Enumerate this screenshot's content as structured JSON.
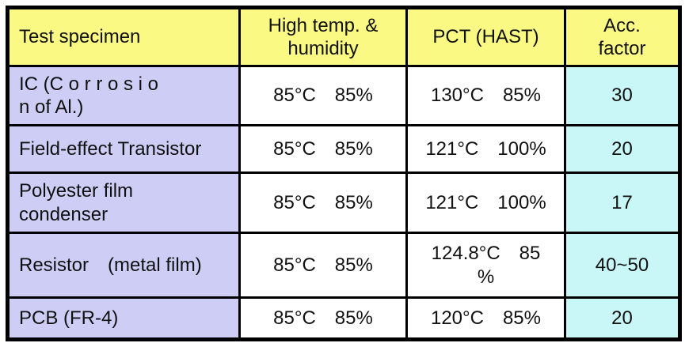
{
  "colors": {
    "header_bg": "#F9F983",
    "specimen_bg": "#CDCDF6",
    "value_bg": "#FFFFFF",
    "acc_factor_bg": "#C9F7F7",
    "border": "#000000",
    "text": "#111111",
    "page_bg": "#FFFFFF"
  },
  "table": {
    "header": [
      "Test specimen",
      "High temp. &\nhumidity",
      "PCT (HAST)",
      "Acc.\nfactor"
    ],
    "rows": [
      [
        "IC (C o r r o s i o\nn of Al.)",
        "85°C 85%",
        "130°C 85%",
        "30"
      ],
      [
        "Field-effect Transistor",
        "85°C 85%",
        "121°C 100%",
        "20"
      ],
      [
        "Polyester film\ncondenser",
        "85°C 85%",
        "121°C 100%",
        "17"
      ],
      [
        "Resistor (metal film)",
        "85°C 85%",
        "124.8°C 85\n%",
        "40~50"
      ],
      [
        "PCB (FR-4)",
        "85°C 85%",
        "120°C 85%",
        "20"
      ]
    ]
  }
}
